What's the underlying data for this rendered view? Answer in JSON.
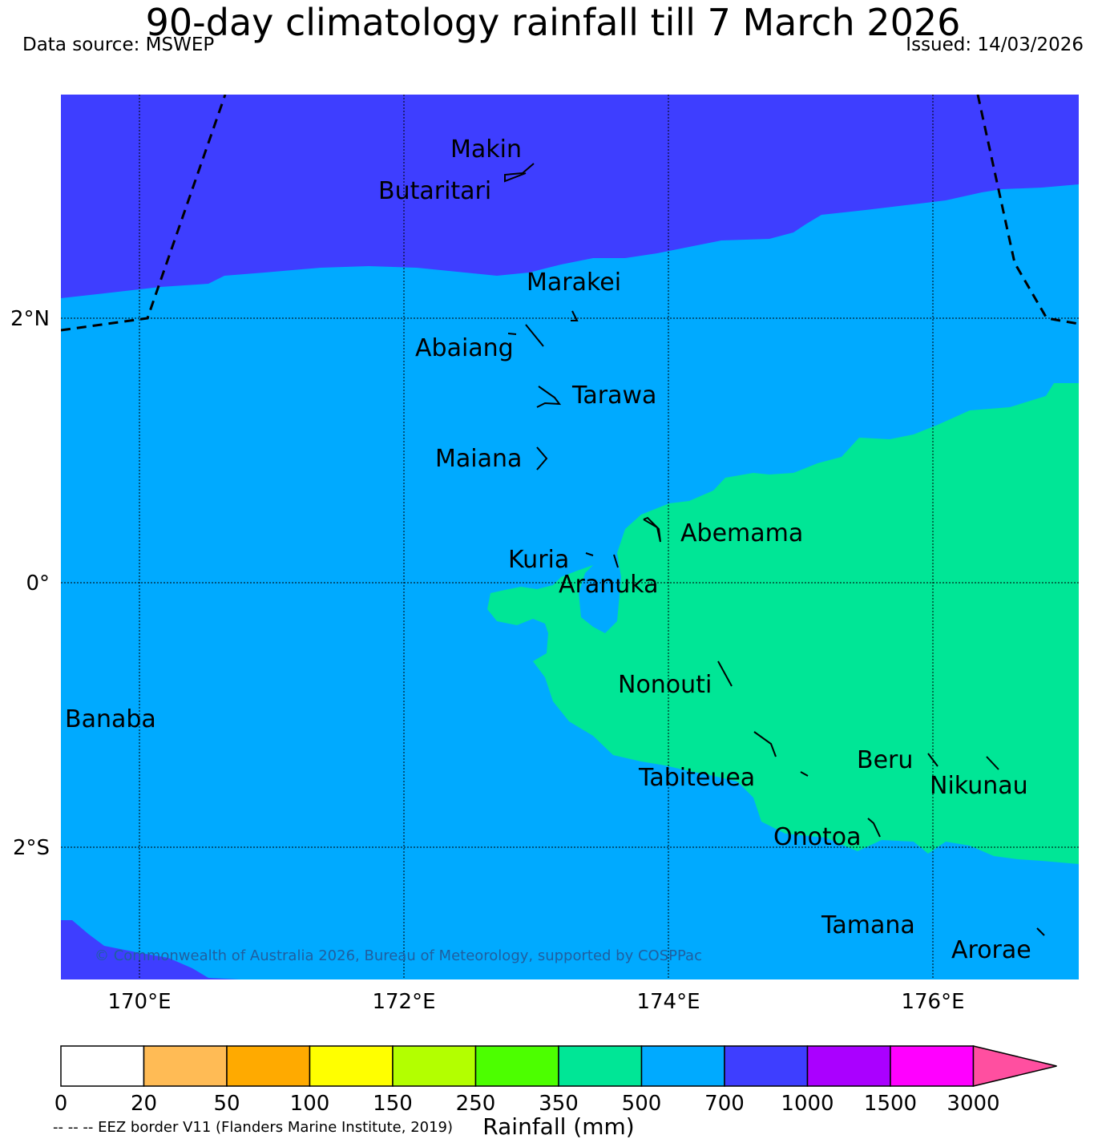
{
  "title": "90-day climatology rainfall till 7 March 2026",
  "data_source": "Data source: MSWEP",
  "issued": "Issued: 14/03/2026",
  "copyright": "© Commonwealth of Australia 2026, Bureau of Meteorology, supported by COSPPac",
  "eez_note": "-- -- -- EEZ border V11 (Flanders Marine Institute, 2019)",
  "colorbar_label": "Rainfall (mm)",
  "lat_labels": [
    "2°N",
    "0°",
    "2°S"
  ],
  "lon_labels": [
    "170°E",
    "172°E",
    "174°E",
    "176°E"
  ],
  "islands": [
    "Makin",
    "Butaritari",
    "Marakei",
    "Abaiang",
    "Tarawa",
    "Maiana",
    "Abemama",
    "Kuria",
    "Aranuka",
    "Nonouti",
    "Banaba",
    "Beru",
    "Nikunau",
    "Tabiteuea",
    "Onotoa",
    "Tamana",
    "Arorae"
  ],
  "colorbar": {
    "ticks": [
      "0",
      "20",
      "50",
      "100",
      "150",
      "250",
      "350",
      "500",
      "700",
      "1000",
      "1500",
      "3000"
    ],
    "colors": [
      "#ffffff",
      "#ffbb55",
      "#ffaa00",
      "#ffff00",
      "#b3ff00",
      "#4cff00",
      "#00e696",
      "#00aaff",
      "#3e3eff",
      "#aa00ff",
      "#ff00ff",
      "#ff4fa0"
    ]
  },
  "map_colors": {
    "band_700_1000": "#3e3eff",
    "band_500_700": "#00aaff",
    "band_350_500": "#00e696"
  }
}
